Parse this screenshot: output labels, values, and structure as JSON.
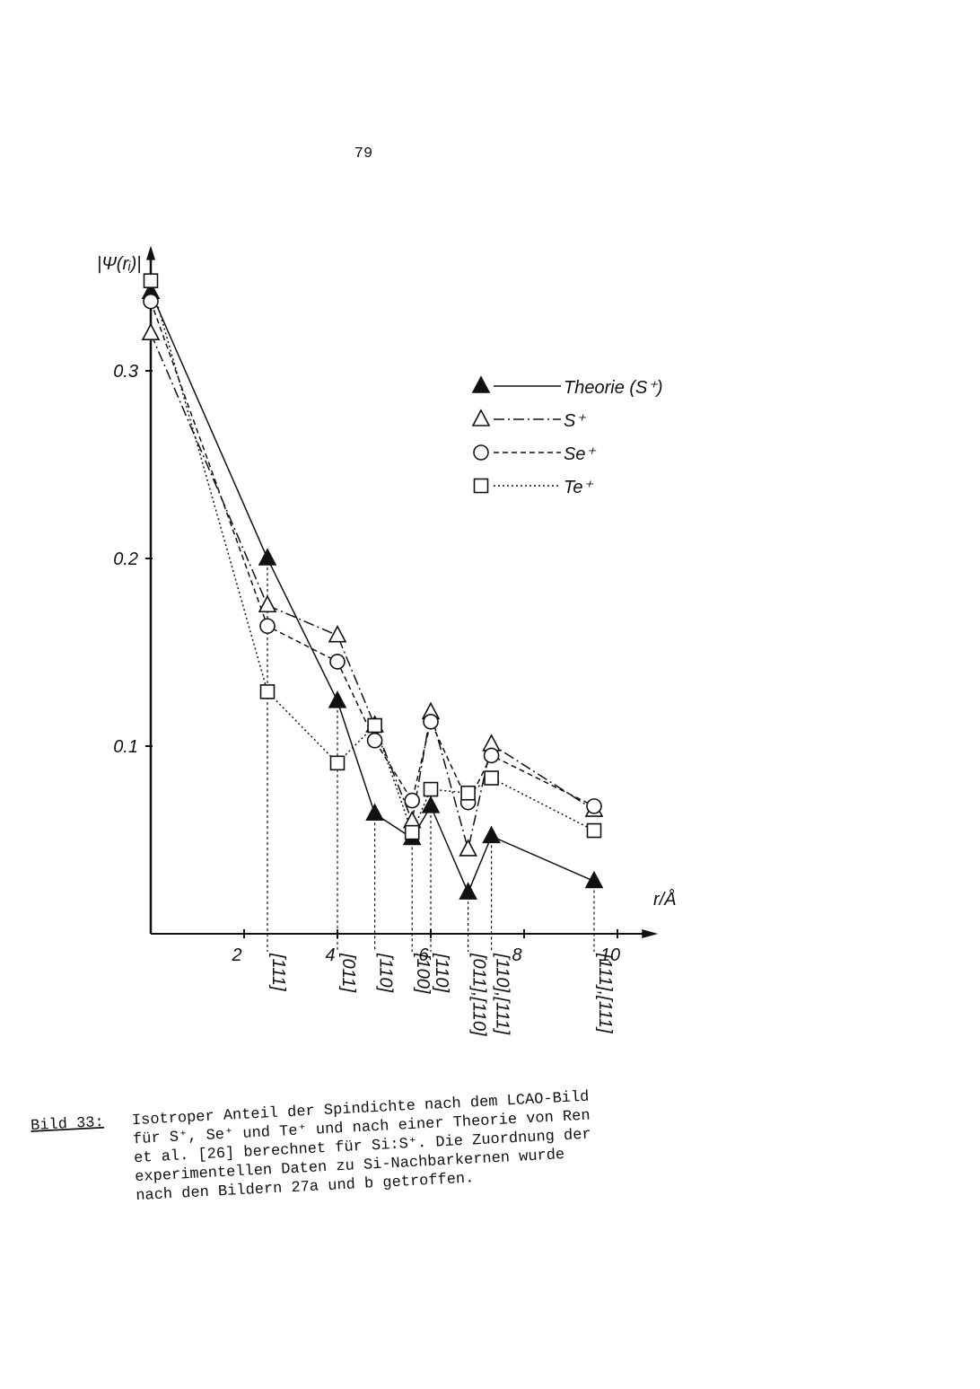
{
  "page_number": "79",
  "chart_data": {
    "type": "line",
    "ylabel": "|Ψ(rᵢ)|",
    "xlabel": "r/Å",
    "x": [
      0,
      2.5,
      4.0,
      4.8,
      5.6,
      6.0,
      6.8,
      7.3,
      9.5
    ],
    "shell_labels": [
      null,
      "[111]",
      "[011]",
      "[110]",
      "[100]",
      "[110]",
      "[011],[110]",
      "[110],[111]",
      "[111],[111]"
    ],
    "xlim": [
      0,
      10.6
    ],
    "xticks": [
      2,
      4,
      6,
      8,
      10
    ],
    "ylim": [
      0,
      0.36
    ],
    "yticks": [
      0.1,
      0.2,
      0.3
    ],
    "series": [
      {
        "name": "Theorie (S⁺)",
        "color": "#111",
        "dash": "solid",
        "marker": "triangle",
        "filled": true,
        "values": [
          0.342,
          0.2,
          0.124,
          0.064,
          0.051,
          0.068,
          0.022,
          0.052,
          0.028
        ]
      },
      {
        "name": "S⁺",
        "color": "#111",
        "dash": "dashdot",
        "marker": "triangle",
        "filled": false,
        "values": [
          0.32,
          0.175,
          0.159,
          0.111,
          0.06,
          0.118,
          0.045,
          0.101,
          0.066
        ]
      },
      {
        "name": "Se⁺",
        "color": "#111",
        "dash": "dashed",
        "marker": "circle",
        "filled": false,
        "values": [
          0.337,
          0.164,
          0.145,
          0.103,
          0.071,
          0.113,
          0.07,
          0.095,
          0.068
        ]
      },
      {
        "name": "Te⁺",
        "color": "#111",
        "dash": "dotted",
        "marker": "square",
        "filled": false,
        "values": [
          0.348,
          0.129,
          0.091,
          0.111,
          0.054,
          0.077,
          0.075,
          0.083,
          0.055
        ]
      }
    ]
  },
  "caption": {
    "label": "Bild 33:",
    "lines": [
      "Isotroper Anteil der Spindichte nach dem LCAO-Bild",
      "für S⁺, Se⁺ und Te⁺ und nach einer Theorie von Ren",
      "et al. [26] berechnet für Si:S⁺. Die Zuordnung der",
      "experimentellen  Daten zu  Si-Nachbarkernen wurde",
      "nach den Bildern 27a und b getroffen."
    ]
  }
}
